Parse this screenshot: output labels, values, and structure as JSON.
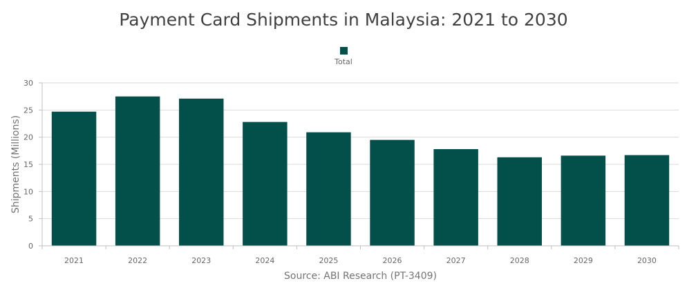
{
  "chart_data": {
    "type": "bar",
    "title": "Payment Card Shipments in Malaysia: 2021 to 2030",
    "source": "Source: ABI Research (PT-3409)",
    "xlabel": "",
    "ylabel": "Shipments (Millions)",
    "ylim": [
      0,
      30
    ],
    "yticks": [
      0,
      5,
      10,
      15,
      20,
      25,
      30
    ],
    "grid": true,
    "legend_position": "top-center",
    "categories": [
      "2021",
      "2022",
      "2023",
      "2024",
      "2025",
      "2026",
      "2027",
      "2028",
      "2029",
      "2030"
    ],
    "series": [
      {
        "name": "Total",
        "color": "#03504a",
        "values": [
          24.7,
          27.5,
          27.1,
          22.8,
          20.9,
          19.5,
          17.8,
          16.3,
          16.6,
          16.7
        ]
      }
    ]
  }
}
